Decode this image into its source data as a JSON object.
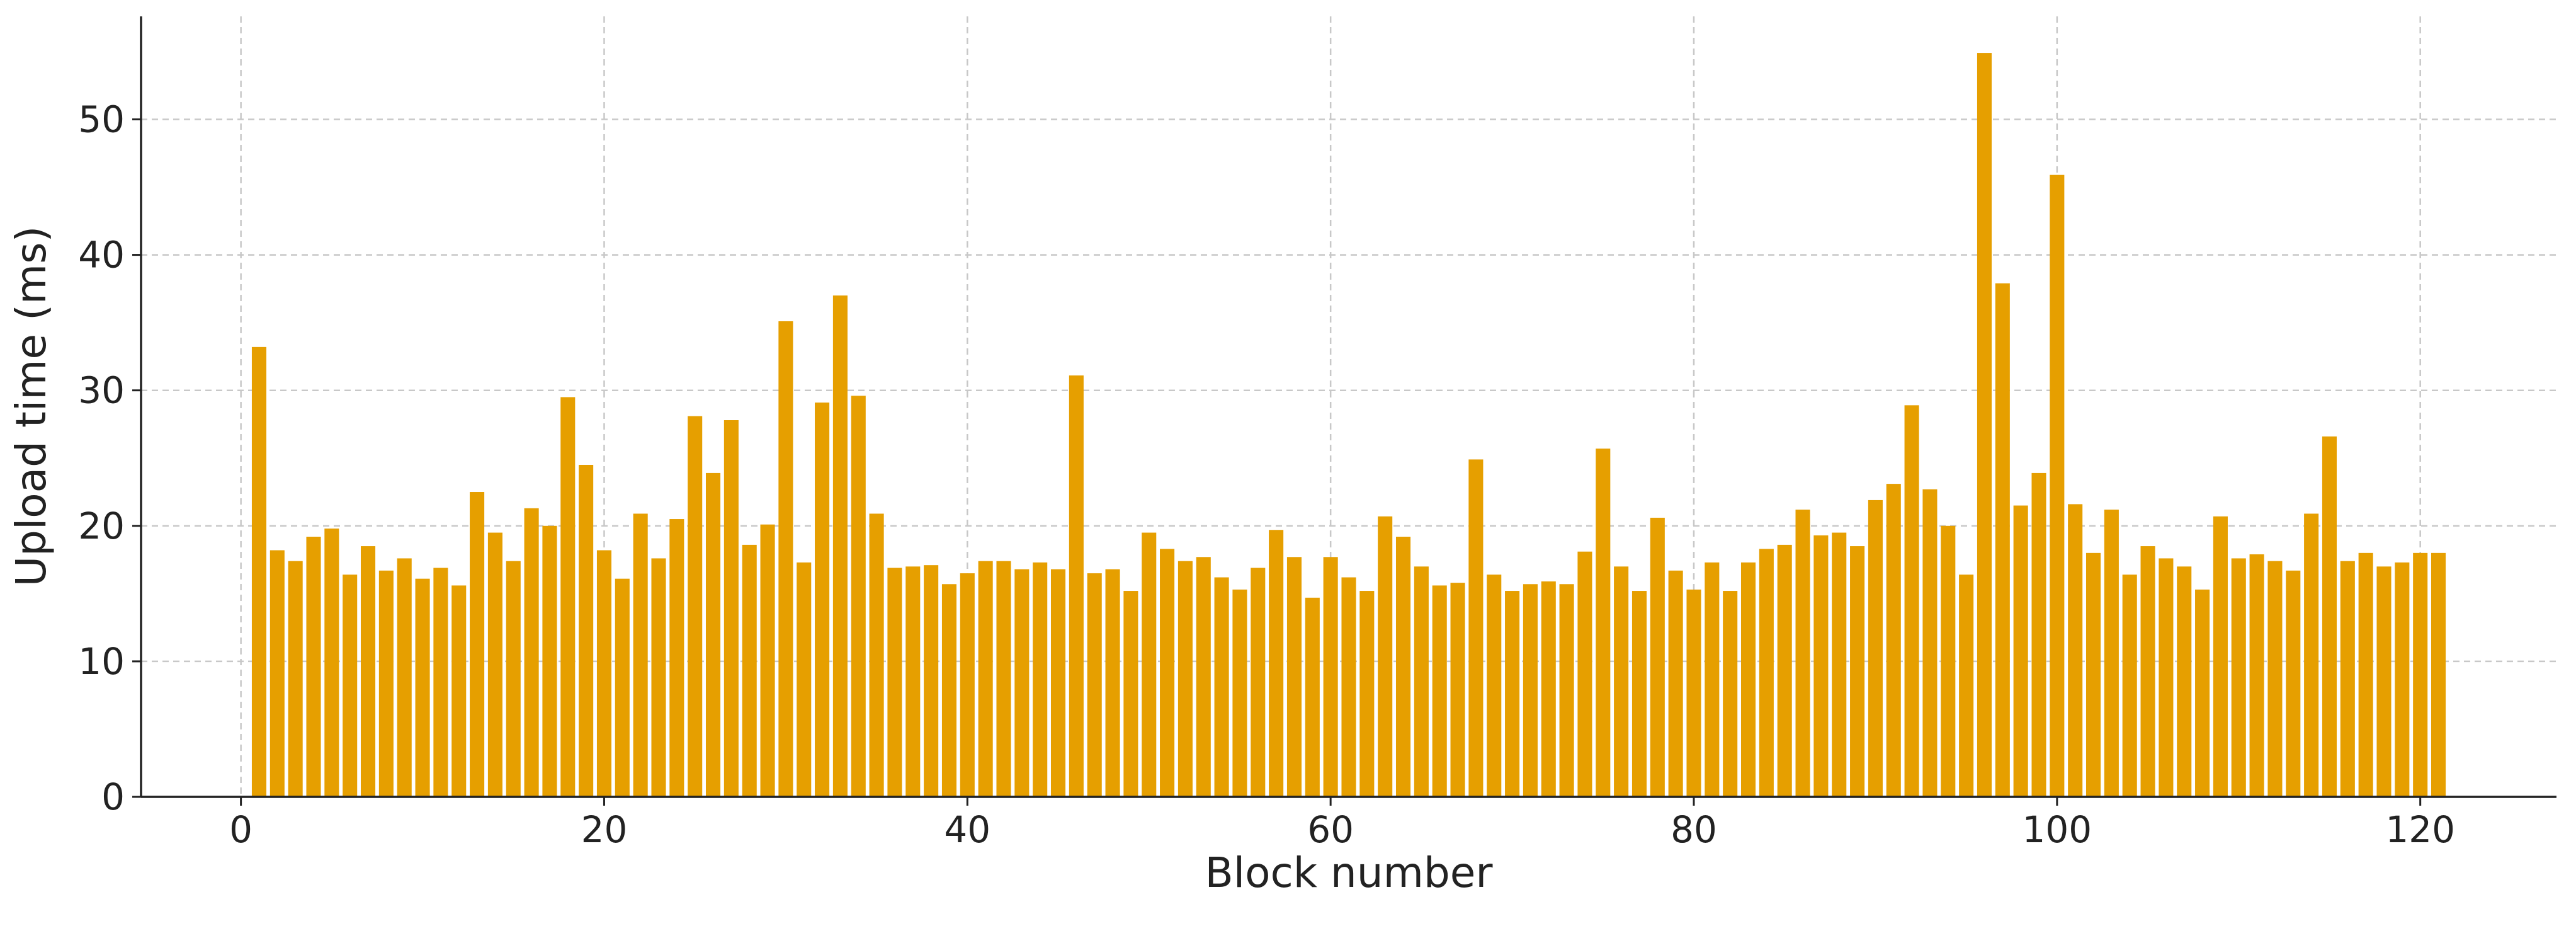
{
  "chart_data": {
    "type": "bar",
    "xlabel": "Block number",
    "ylabel": "Upload time (ms)",
    "x": [
      1,
      2,
      3,
      4,
      5,
      6,
      7,
      8,
      9,
      10,
      11,
      12,
      13,
      14,
      15,
      16,
      17,
      18,
      19,
      20,
      21,
      22,
      23,
      24,
      25,
      26,
      27,
      28,
      29,
      30,
      31,
      32,
      33,
      34,
      35,
      36,
      37,
      38,
      39,
      40,
      41,
      42,
      43,
      44,
      45,
      46,
      47,
      48,
      49,
      50,
      51,
      52,
      53,
      54,
      55,
      56,
      57,
      58,
      59,
      60,
      61,
      62,
      63,
      64,
      65,
      66,
      67,
      68,
      69,
      70,
      71,
      72,
      73,
      74,
      75,
      76,
      77,
      78,
      79,
      80,
      81,
      82,
      83,
      84,
      85,
      86,
      87,
      88,
      89,
      90,
      91,
      92,
      93,
      94,
      95,
      96,
      97,
      98,
      99,
      100,
      101,
      102,
      103,
      104,
      105,
      106,
      107,
      108,
      109,
      110,
      111,
      112,
      113,
      114,
      115,
      116,
      117,
      118,
      119,
      120,
      121
    ],
    "values": [
      33.2,
      18.2,
      17.4,
      19.2,
      19.8,
      16.4,
      18.5,
      16.7,
      17.6,
      16.1,
      16.9,
      15.6,
      22.5,
      19.5,
      17.4,
      21.3,
      20.0,
      29.5,
      24.5,
      18.2,
      16.1,
      20.9,
      17.6,
      20.5,
      28.1,
      23.9,
      27.8,
      18.6,
      20.1,
      35.1,
      17.3,
      29.1,
      37.0,
      29.6,
      20.9,
      16.9,
      17.0,
      17.1,
      15.7,
      16.5,
      17.4,
      17.4,
      16.8,
      17.3,
      16.8,
      31.1,
      16.5,
      16.8,
      15.2,
      19.5,
      18.3,
      17.4,
      17.7,
      16.2,
      15.3,
      16.9,
      19.7,
      17.7,
      14.7,
      17.7,
      16.2,
      15.2,
      20.7,
      19.2,
      17.0,
      15.6,
      15.8,
      24.9,
      16.4,
      15.2,
      15.7,
      15.9,
      15.7,
      18.1,
      25.7,
      17.0,
      15.2,
      20.6,
      16.7,
      15.3,
      17.3,
      15.2,
      17.3,
      18.3,
      18.6,
      21.2,
      19.3,
      19.5,
      18.5,
      21.9,
      23.1,
      28.9,
      22.7,
      20.0,
      16.4,
      54.9,
      37.9,
      21.5,
      23.9,
      45.9,
      21.6,
      18.0,
      21.2,
      16.4,
      18.5,
      17.6,
      17.0,
      15.3,
      20.7,
      17.6,
      17.9,
      17.4,
      16.7,
      20.9,
      26.6,
      17.4,
      18.0,
      17.0,
      17.3,
      18.0,
      18.0
    ],
    "color": "#e69f00",
    "bar_width": 0.8,
    "xlim": [
      -5.5,
      127.5
    ],
    "xticks": [
      0,
      20,
      40,
      60,
      80,
      100,
      120
    ],
    "ylim": [
      0,
      57.6
    ],
    "yticks": [
      0,
      10,
      20,
      30,
      40,
      50
    ],
    "grid": true
  }
}
